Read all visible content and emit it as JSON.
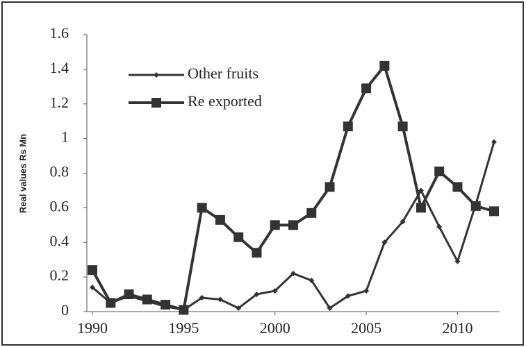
{
  "chart_data": {
    "type": "line",
    "y_label": "Real values Rs Mn",
    "x": [
      1990,
      1991,
      1992,
      1993,
      1994,
      1995,
      1996,
      1997,
      1998,
      1999,
      2000,
      2001,
      2002,
      2003,
      2004,
      2005,
      2006,
      2007,
      2008,
      2009,
      2010,
      2011,
      2012
    ],
    "series": [
      {
        "name": "Other fruits",
        "color": "#333333",
        "marker": "diamond",
        "values": [
          0.14,
          0.05,
          0.09,
          0.06,
          0.03,
          0.01,
          0.08,
          0.07,
          0.02,
          0.1,
          0.12,
          0.22,
          0.18,
          0.02,
          0.09,
          0.12,
          0.4,
          0.52,
          0.7,
          0.49,
          0.29,
          0.62,
          0.98
        ]
      },
      {
        "name": "Re exported",
        "color": "#333333",
        "marker": "square",
        "values": [
          0.24,
          0.05,
          0.1,
          0.07,
          0.04,
          0.01,
          0.6,
          0.53,
          0.43,
          0.34,
          0.5,
          0.5,
          0.57,
          0.72,
          1.07,
          1.29,
          1.42,
          1.07,
          0.6,
          0.81,
          0.72,
          0.61,
          0.58
        ]
      }
    ],
    "xlim": [
      1990,
      2012
    ],
    "xticks": [
      1990,
      1995,
      2000,
      2005,
      2010
    ],
    "ylim": [
      0,
      1.6
    ],
    "yticks": [
      0,
      0.2,
      0.4,
      0.6,
      0.8,
      1,
      1.2,
      1.4,
      1.6
    ],
    "legend": "upper left"
  }
}
